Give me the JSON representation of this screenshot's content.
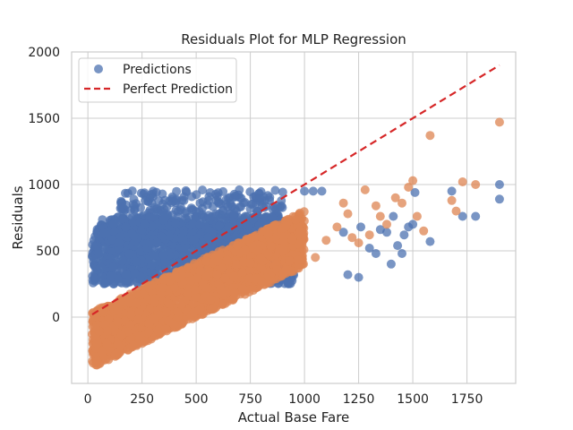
{
  "chart_data": {
    "type": "scatter",
    "title": "Residuals Plot for MLP Regression",
    "xlabel": "Actual Base Fare",
    "ylabel": "Residuals",
    "xlim": [
      -75,
      1975
    ],
    "ylim": [
      -500,
      2000
    ],
    "xticks": [
      0,
      250,
      500,
      750,
      1000,
      1250,
      1500,
      1750
    ],
    "yticks": [
      0,
      500,
      1000,
      1500,
      2000
    ],
    "grid": true,
    "legend_position": "top-left",
    "colors": {
      "predictions": "#4c72b0",
      "second_series": "#dd8452",
      "perfect": "#d62728"
    },
    "series": [
      {
        "name": "Predictions",
        "marker": "circle",
        "color": "#4c72b0",
        "clusters": [
          {
            "x": [
              20,
              950
            ],
            "y": [
              250,
              700
            ],
            "n": 1600
          },
          {
            "x": [
              60,
              900
            ],
            "y": [
              560,
              760
            ],
            "n": 350
          },
          {
            "x": [
              150,
              900
            ],
            "y": [
              680,
              960
            ],
            "n": 260
          }
        ],
        "points": [
          {
            "x": 1000,
            "y": 950
          },
          {
            "x": 1040,
            "y": 950
          },
          {
            "x": 1080,
            "y": 950
          },
          {
            "x": 1180,
            "y": 640
          },
          {
            "x": 1200,
            "y": 320
          },
          {
            "x": 1250,
            "y": 300
          },
          {
            "x": 1260,
            "y": 680
          },
          {
            "x": 1300,
            "y": 520
          },
          {
            "x": 1330,
            "y": 480
          },
          {
            "x": 1350,
            "y": 660
          },
          {
            "x": 1380,
            "y": 640
          },
          {
            "x": 1400,
            "y": 400
          },
          {
            "x": 1410,
            "y": 760
          },
          {
            "x": 1430,
            "y": 540
          },
          {
            "x": 1450,
            "y": 480
          },
          {
            "x": 1460,
            "y": 620
          },
          {
            "x": 1480,
            "y": 680
          },
          {
            "x": 1500,
            "y": 700
          },
          {
            "x": 1510,
            "y": 940
          },
          {
            "x": 1580,
            "y": 570
          },
          {
            "x": 1680,
            "y": 950
          },
          {
            "x": 1730,
            "y": 760
          },
          {
            "x": 1790,
            "y": 760
          },
          {
            "x": 1900,
            "y": 1000
          },
          {
            "x": 1900,
            "y": 890
          }
        ]
      },
      {
        "name": "",
        "marker": "circle",
        "color": "#dd8452",
        "clusters": [
          {
            "x": [
              20,
              1000
            ],
            "y": [
              -380,
              380
            ],
            "trend": 0.78,
            "n": 2300
          }
        ],
        "points": [
          {
            "x": 1050,
            "y": 450
          },
          {
            "x": 1100,
            "y": 580
          },
          {
            "x": 1150,
            "y": 680
          },
          {
            "x": 1180,
            "y": 860
          },
          {
            "x": 1200,
            "y": 780
          },
          {
            "x": 1220,
            "y": 600
          },
          {
            "x": 1250,
            "y": 560
          },
          {
            "x": 1280,
            "y": 960
          },
          {
            "x": 1300,
            "y": 620
          },
          {
            "x": 1330,
            "y": 840
          },
          {
            "x": 1350,
            "y": 760
          },
          {
            "x": 1380,
            "y": 700
          },
          {
            "x": 1420,
            "y": 900
          },
          {
            "x": 1450,
            "y": 860
          },
          {
            "x": 1480,
            "y": 980
          },
          {
            "x": 1500,
            "y": 1030
          },
          {
            "x": 1520,
            "y": 760
          },
          {
            "x": 1550,
            "y": 650
          },
          {
            "x": 1580,
            "y": 1370
          },
          {
            "x": 1680,
            "y": 880
          },
          {
            "x": 1700,
            "y": 800
          },
          {
            "x": 1730,
            "y": 1020
          },
          {
            "x": 1790,
            "y": 1000
          },
          {
            "x": 1900,
            "y": 1470
          }
        ]
      },
      {
        "name": "Perfect Prediction",
        "type": "line",
        "style": "dashed",
        "color": "#d62728",
        "x": [
          20,
          1900
        ],
        "y": [
          20,
          1900
        ]
      }
    ]
  }
}
